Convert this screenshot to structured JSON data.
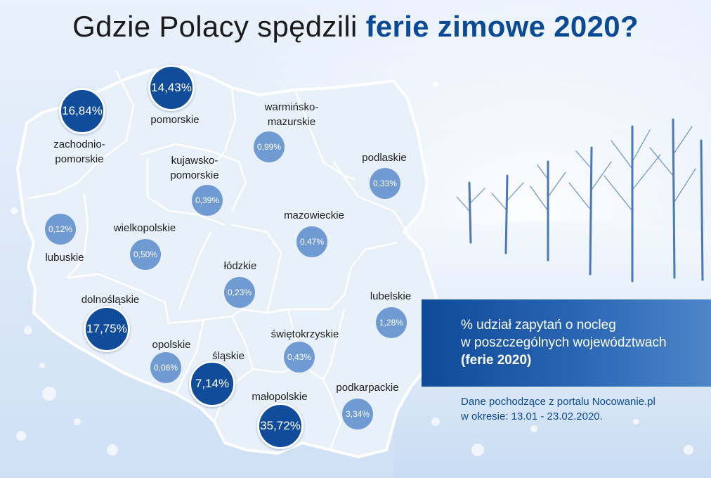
{
  "title": {
    "prefix": "Gdzie Polacy spędzili ",
    "highlight": "ferie zimowe 2020?"
  },
  "regions": [
    {
      "id": "zachodniopomorskie",
      "label_lines": [
        "zachodnio-",
        "pomorskie"
      ],
      "value": "16,84%",
      "highlight": true
    },
    {
      "id": "pomorskie",
      "label_lines": [
        "pomorskie"
      ],
      "value": "14,43%",
      "highlight": true
    },
    {
      "id": "warminsko-mazurskie",
      "label_lines": [
        "warmińsko-",
        "mazurskie"
      ],
      "value": "0,99%",
      "highlight": false
    },
    {
      "id": "podlaskie",
      "label_lines": [
        "podlaskie"
      ],
      "value": "0,33%",
      "highlight": false
    },
    {
      "id": "kujawsko-pomorskie",
      "label_lines": [
        "kujawsko-",
        "pomorskie"
      ],
      "value": "0,39%",
      "highlight": false
    },
    {
      "id": "lubuskie",
      "label_lines": [
        "lubuskie"
      ],
      "value": "0,12%",
      "highlight": false
    },
    {
      "id": "wielkopolskie",
      "label_lines": [
        "wielkopolskie"
      ],
      "value": "0,50%",
      "highlight": false
    },
    {
      "id": "mazowieckie",
      "label_lines": [
        "mazowieckie"
      ],
      "value": "0,47%",
      "highlight": false
    },
    {
      "id": "lodzkie",
      "label_lines": [
        "łódzkie"
      ],
      "value": "0,23%",
      "highlight": false
    },
    {
      "id": "lubelskie",
      "label_lines": [
        "lubelskie"
      ],
      "value": "1,28%",
      "highlight": false
    },
    {
      "id": "dolnoslaskie",
      "label_lines": [
        "dolnośląskie"
      ],
      "value": "17,75%",
      "highlight": true
    },
    {
      "id": "opolskie",
      "label_lines": [
        "opolskie"
      ],
      "value": "0,06%",
      "highlight": false
    },
    {
      "id": "slaskie",
      "label_lines": [
        "śląskie"
      ],
      "value": "7,14%",
      "highlight": true
    },
    {
      "id": "swietokrzyskie",
      "label_lines": [
        "świętokrzyskie"
      ],
      "value": "0,43%",
      "highlight": false
    },
    {
      "id": "malopolskie",
      "label_lines": [
        "małopolskie"
      ],
      "value": "35,72%",
      "highlight": true
    },
    {
      "id": "podkarpackie",
      "label_lines": [
        "podkarpackie"
      ],
      "value": "3,34%",
      "highlight": false
    }
  ],
  "legend": {
    "line1": "% udział zapytań o nocleg",
    "line2": "w poszczególnych województwach",
    "line3": "(ferie 2020)"
  },
  "source": {
    "line1": "Dane pochodzące z portalu Nocowanie.pl",
    "line2": "w okresie: 13.01 - 23.02.2020."
  },
  "colors": {
    "accent": "#0b4a94",
    "bubble_big": "#114c9a",
    "bubble_small": "#6f9ad2",
    "map_fill": "#e8f0fa",
    "map_border": "#ffffff"
  }
}
